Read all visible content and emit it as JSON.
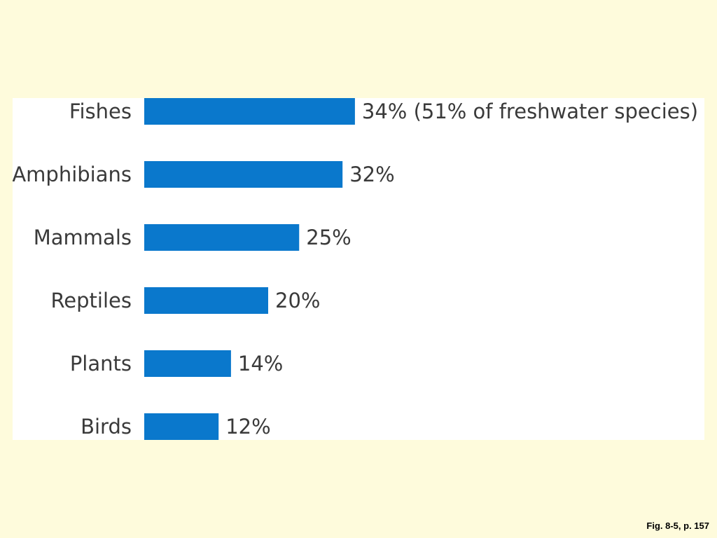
{
  "colors": {
    "background": "#fefbdc",
    "panel": "#ffffff",
    "bar": "#0a78cc",
    "text": "#3a3a3a"
  },
  "caption": "Fig. 8-5, p. 157",
  "chart_data": {
    "type": "bar",
    "orientation": "horizontal",
    "categories": [
      "Fishes",
      "Amphibians",
      "Mammals",
      "Reptiles",
      "Plants",
      "Birds"
    ],
    "values": [
      34,
      32,
      25,
      20,
      14,
      12
    ],
    "value_labels": [
      "34% (51% of freshwater species)",
      "32%",
      "25%",
      "20%",
      "14%",
      "12%"
    ],
    "unit": "%",
    "title": "",
    "xlabel": "",
    "ylabel": "",
    "grid": false,
    "legend": "none"
  }
}
